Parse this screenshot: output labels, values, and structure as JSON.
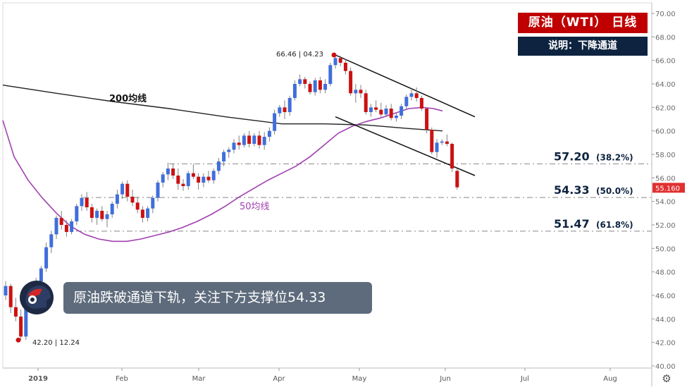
{
  "header": {
    "title": "原油（WTI） 日线",
    "subtitle": "说明：下降通道"
  },
  "callout": {
    "text": "原油跌破通道下轨，关注下方支撑位54.33"
  },
  "icons": {
    "settings": "gear-icon",
    "logo": "helmet-logo-icon"
  },
  "colors": {
    "up": "#3f6fdb",
    "down": "#cc1111",
    "ma50": "#a040b0",
    "ma200": "#222222",
    "title_bg": "#c00000",
    "subtitle_bg": "#0d2340",
    "price_tag": "#e03030"
  },
  "chart_data": {
    "type": "candlestick",
    "y_axis": {
      "min": 40,
      "max": 70,
      "step": 2,
      "ticks": [
        "40.00",
        "42.00",
        "44.00",
        "46.00",
        "48.00",
        "50.00",
        "52.00",
        "54.00",
        "56.00",
        "58.00",
        "60.00",
        "62.00",
        "64.00",
        "66.00",
        "68.00",
        "70.00"
      ]
    },
    "x_axis": {
      "ticks": [
        "2019",
        "Feb",
        "Mar",
        "Apr",
        "May",
        "Jun",
        "Jul",
        "Aug"
      ]
    },
    "current_price": "55.160",
    "annotations": {
      "high": {
        "price": "66.46",
        "date": "04.23"
      },
      "low": {
        "price": "42.20",
        "date": "12.24"
      }
    },
    "fib_levels": [
      {
        "value": 57.2,
        "label": "57.20",
        "pct": "(38.2%)"
      },
      {
        "value": 54.33,
        "label": "54.33",
        "pct": "(50.0%)"
      },
      {
        "value": 51.47,
        "label": "51.47",
        "pct": "(61.8%)"
      }
    ],
    "ma_labels": {
      "ma200": "200均线",
      "ma50": "50均线"
    },
    "candles": [
      [
        46.0,
        47.2,
        45.6,
        46.8
      ],
      [
        46.8,
        47.0,
        44.5,
        45.0
      ],
      [
        45.0,
        45.8,
        43.8,
        44.2
      ],
      [
        44.2,
        44.8,
        42.2,
        42.5
      ],
      [
        42.5,
        45.5,
        42.2,
        45.2
      ],
      [
        45.2,
        46.5,
        44.8,
        46.0
      ],
      [
        46.0,
        47.5,
        45.5,
        47.2
      ],
      [
        47.2,
        48.5,
        46.8,
        48.3
      ],
      [
        48.3,
        50.5,
        48.0,
        50.1
      ],
      [
        50.1,
        51.5,
        49.6,
        51.2
      ],
      [
        51.2,
        52.8,
        50.8,
        52.6
      ],
      [
        52.6,
        53.2,
        51.6,
        52.0
      ],
      [
        52.0,
        52.4,
        51.0,
        51.4
      ],
      [
        51.4,
        52.5,
        51.2,
        52.3
      ],
      [
        52.3,
        53.8,
        52.0,
        53.6
      ],
      [
        53.6,
        54.6,
        53.2,
        54.3
      ],
      [
        54.3,
        54.8,
        53.2,
        53.5
      ],
      [
        53.5,
        53.8,
        52.2,
        52.6
      ],
      [
        52.6,
        53.4,
        52.0,
        53.2
      ],
      [
        53.2,
        53.6,
        52.3,
        52.5
      ],
      [
        52.5,
        53.2,
        51.8,
        52.9
      ],
      [
        52.9,
        54.0,
        52.6,
        53.8
      ],
      [
        53.8,
        55.0,
        53.4,
        54.6
      ],
      [
        54.6,
        55.7,
        54.2,
        55.5
      ],
      [
        55.5,
        55.8,
        54.0,
        54.4
      ],
      [
        54.4,
        55.0,
        53.6,
        53.9
      ],
      [
        53.9,
        54.4,
        53.0,
        53.3
      ],
      [
        53.3,
        53.6,
        52.2,
        52.6
      ],
      [
        52.6,
        53.6,
        52.3,
        53.4
      ],
      [
        53.4,
        54.5,
        53.0,
        54.3
      ],
      [
        54.3,
        55.8,
        54.0,
        55.6
      ],
      [
        55.6,
        56.5,
        55.2,
        56.3
      ],
      [
        56.3,
        57.3,
        55.8,
        56.8
      ],
      [
        56.8,
        57.2,
        55.9,
        56.2
      ],
      [
        56.2,
        56.8,
        55.0,
        55.5
      ],
      [
        55.5,
        55.9,
        54.9,
        55.3
      ],
      [
        55.3,
        56.6,
        55.0,
        56.4
      ],
      [
        56.4,
        57.2,
        55.9,
        56.1
      ],
      [
        56.1,
        56.4,
        55.0,
        55.6
      ],
      [
        55.6,
        56.4,
        55.2,
        56.1
      ],
      [
        56.1,
        56.6,
        55.6,
        55.8
      ],
      [
        55.8,
        56.8,
        55.5,
        56.6
      ],
      [
        56.6,
        57.7,
        56.3,
        57.4
      ],
      [
        57.4,
        58.4,
        57.0,
        58.2
      ],
      [
        58.2,
        58.6,
        57.7,
        58.4
      ],
      [
        58.4,
        59.3,
        58.1,
        59.0
      ],
      [
        59.0,
        59.6,
        58.4,
        58.8
      ],
      [
        58.8,
        59.8,
        58.6,
        59.6
      ],
      [
        59.6,
        60.0,
        58.6,
        58.9
      ],
      [
        58.9,
        59.8,
        58.7,
        59.6
      ],
      [
        59.6,
        60.0,
        58.5,
        58.8
      ],
      [
        58.8,
        59.9,
        58.4,
        59.5
      ],
      [
        59.5,
        60.3,
        59.1,
        60.0
      ],
      [
        60.0,
        61.8,
        59.7,
        61.5
      ],
      [
        61.5,
        62.2,
        61.2,
        62.0
      ],
      [
        62.0,
        62.6,
        61.0,
        61.6
      ],
      [
        61.6,
        63.0,
        61.3,
        62.8
      ],
      [
        62.8,
        64.3,
        62.6,
        64.0
      ],
      [
        64.0,
        64.8,
        63.8,
        64.4
      ],
      [
        64.4,
        64.6,
        63.6,
        64.0
      ],
      [
        64.0,
        64.2,
        63.1,
        63.3
      ],
      [
        63.3,
        64.5,
        63.0,
        64.3
      ],
      [
        64.3,
        64.6,
        63.2,
        63.5
      ],
      [
        63.5,
        64.4,
        63.2,
        64.0
      ],
      [
        64.0,
        65.8,
        63.8,
        65.6
      ],
      [
        65.6,
        66.5,
        65.3,
        66.2
      ],
      [
        66.2,
        66.4,
        65.5,
        65.8
      ],
      [
        65.8,
        66.1,
        64.8,
        65.1
      ],
      [
        65.1,
        65.4,
        63.0,
        63.2
      ],
      [
        63.2,
        64.0,
        62.4,
        63.5
      ],
      [
        63.5,
        63.9,
        62.8,
        63.2
      ],
      [
        63.2,
        63.5,
        61.4,
        61.6
      ],
      [
        61.6,
        62.3,
        61.2,
        62.0
      ],
      [
        62.0,
        62.6,
        61.6,
        61.8
      ],
      [
        61.8,
        62.4,
        61.2,
        61.4
      ],
      [
        61.4,
        62.2,
        61.2,
        61.9
      ],
      [
        61.9,
        62.3,
        60.9,
        61.1
      ],
      [
        61.1,
        61.6,
        60.8,
        61.3
      ],
      [
        61.3,
        62.3,
        61.0,
        62.1
      ],
      [
        62.1,
        63.1,
        61.9,
        62.9
      ],
      [
        62.9,
        63.6,
        62.6,
        63.2
      ],
      [
        63.2,
        63.7,
        62.5,
        62.8
      ],
      [
        62.8,
        63.0,
        61.7,
        61.9
      ],
      [
        61.9,
        62.0,
        59.8,
        60.1
      ],
      [
        60.1,
        60.3,
        58.0,
        58.2
      ],
      [
        58.2,
        59.3,
        57.7,
        59.0
      ],
      [
        59.0,
        59.3,
        58.8,
        59.1
      ],
      [
        59.1,
        59.7,
        58.7,
        58.9
      ],
      [
        58.9,
        59.0,
        56.5,
        56.8
      ],
      [
        56.6,
        56.8,
        55.0,
        55.2
      ]
    ]
  }
}
